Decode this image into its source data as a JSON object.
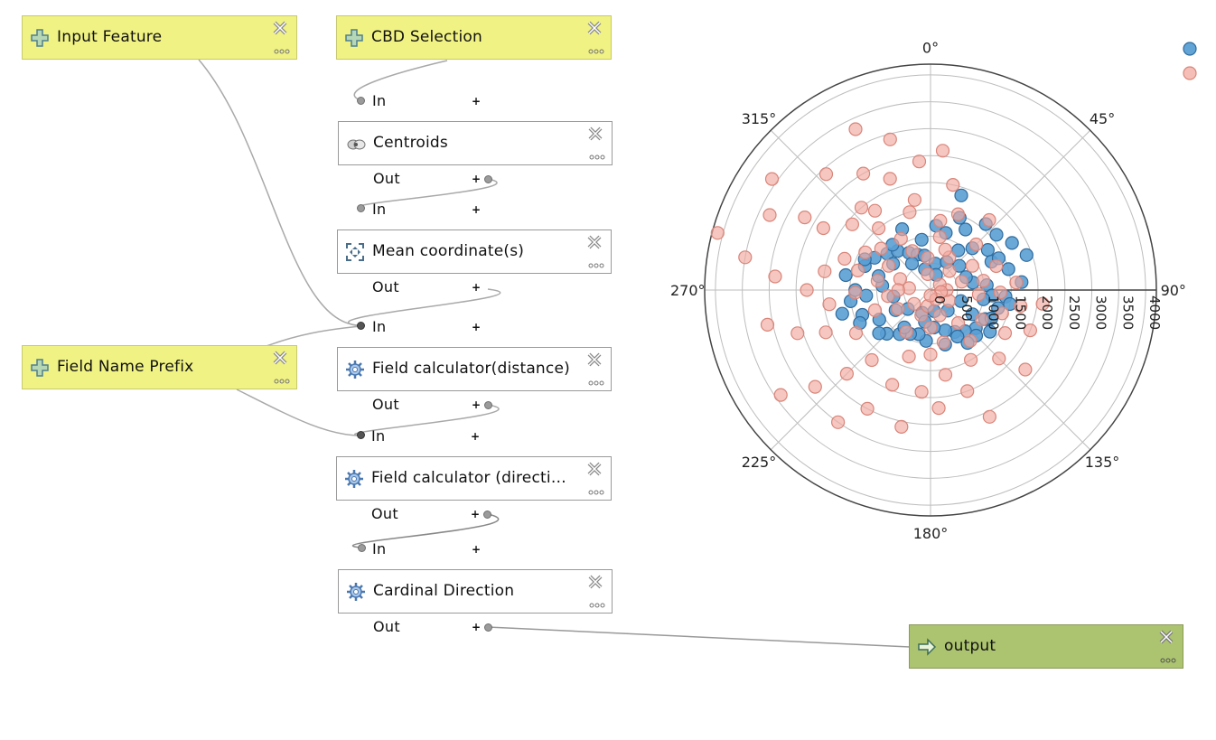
{
  "nodes": {
    "input_feature": {
      "label": "Input Feature"
    },
    "cbd_selection": {
      "label": "CBD Selection"
    },
    "field_name_prefix": {
      "label": "Field Name Prefix"
    },
    "centroids": {
      "label": "Centroids",
      "in": "In",
      "out": "Out"
    },
    "mean_coordinate": {
      "label": "Mean coordinate(s)",
      "in": "In",
      "out": "Out"
    },
    "field_calc_distance": {
      "label": "Field calculator(distance)",
      "in": "In",
      "out": "Out"
    },
    "field_calc_direction": {
      "label": "Field calculator (directi…",
      "in": "In",
      "out": "Out"
    },
    "cardinal_direction": {
      "label": "Cardinal Direction",
      "in": "In",
      "out": "Out"
    },
    "output": {
      "label": "output"
    }
  },
  "colors": {
    "input_node": "#f0f283",
    "output_node": "#acc46f",
    "series_blue": "#5a9fd4",
    "series_pink": "#f1a9a0"
  },
  "chart_data": {
    "type": "scatter",
    "subtype": "polar",
    "angular_ticks": [
      "0°",
      "45°",
      "90°",
      "135°",
      "180°",
      "225°",
      "270°",
      "315°"
    ],
    "radial_ticks": [
      "0",
      "500",
      "1000",
      "1500",
      "2000",
      "2500",
      "3000",
      "3500",
      "4000"
    ],
    "radial_range": [
      0,
      4200
    ],
    "angular_direction": "clockwise",
    "rotation_zero": "north",
    "grid": true,
    "legend": "top-right",
    "series": [
      {
        "color": "#5a9fd4",
        "points": [
          [
            1200,
            5
          ],
          [
            1850,
            18
          ],
          [
            1450,
            22
          ],
          [
            1600,
            40
          ],
          [
            1300,
            55
          ],
          [
            1750,
            60
          ],
          [
            1900,
            70
          ],
          [
            1500,
            75
          ],
          [
            1400,
            95
          ],
          [
            1300,
            105
          ],
          [
            1150,
            118
          ],
          [
            1100,
            130
          ],
          [
            1000,
            140
          ],
          [
            900,
            150
          ],
          [
            800,
            160
          ],
          [
            1050,
            165
          ],
          [
            700,
            175
          ],
          [
            950,
            185
          ],
          [
            850,
            195
          ],
          [
            900,
            205
          ],
          [
            1000,
            215
          ],
          [
            1150,
            225
          ],
          [
            1100,
            240
          ],
          [
            1350,
            250
          ],
          [
            1500,
            262
          ],
          [
            1400,
            270
          ],
          [
            1600,
            280
          ],
          [
            1300,
            290
          ],
          [
            1200,
            300
          ],
          [
            1050,
            310
          ],
          [
            950,
            320
          ],
          [
            800,
            330
          ],
          [
            700,
            340
          ],
          [
            650,
            350
          ],
          [
            500,
            10
          ],
          [
            600,
            30
          ],
          [
            700,
            50
          ],
          [
            800,
            80
          ],
          [
            600,
            110
          ],
          [
            500,
            140
          ],
          [
            400,
            170
          ],
          [
            450,
            200
          ],
          [
            550,
            230
          ],
          [
            700,
            260
          ],
          [
            900,
            275
          ],
          [
            1000,
            285
          ],
          [
            850,
            305
          ],
          [
            600,
            325
          ],
          [
            400,
            345
          ],
          [
            300,
            20
          ],
          [
            900,
            35
          ],
          [
            1100,
            45
          ],
          [
            1250,
            65
          ],
          [
            1050,
            85
          ],
          [
            1150,
            95
          ],
          [
            1250,
            115
          ],
          [
            1350,
            125
          ],
          [
            1000,
            150
          ],
          [
            1200,
            135
          ],
          [
            600,
            190
          ],
          [
            850,
            215
          ],
          [
            750,
            240
          ],
          [
            1250,
            230
          ],
          [
            1450,
            245
          ],
          [
            1700,
            255
          ],
          [
            1200,
            265
          ],
          [
            1350,
            295
          ],
          [
            1100,
            320
          ],
          [
            1250,
            335
          ],
          [
            950,
            350
          ],
          [
            1100,
            15
          ],
          [
            1300,
            30
          ],
          [
            1600,
            50
          ],
          [
            1400,
            65
          ],
          [
            1700,
            85
          ],
          [
            1500,
            100
          ],
          [
            1200,
            145
          ],
          [
            900,
            120
          ],
          [
            1000,
            100
          ],
          [
            700,
            70
          ]
        ]
      },
      {
        "color": "#f1a9a0",
        "points": [
          [
            2400,
            355
          ],
          [
            2900,
            345
          ],
          [
            3300,
            335
          ],
          [
            2500,
            330
          ],
          [
            2000,
            320
          ],
          [
            2900,
            318
          ],
          [
            3600,
            305
          ],
          [
            2700,
            300
          ],
          [
            3300,
            295
          ],
          [
            4100,
            285
          ],
          [
            2000,
            280
          ],
          [
            3500,
            280
          ],
          [
            2900,
            275
          ],
          [
            2300,
            270
          ],
          [
            1400,
            268
          ],
          [
            1900,
            262
          ],
          [
            3100,
            258
          ],
          [
            2600,
            252
          ],
          [
            2100,
            248
          ],
          [
            1600,
            240
          ],
          [
            3400,
            235
          ],
          [
            2800,
            230
          ],
          [
            2200,
            225
          ],
          [
            1700,
            220
          ],
          [
            3000,
            215
          ],
          [
            2500,
            208
          ],
          [
            1900,
            202
          ],
          [
            1300,
            198
          ],
          [
            2600,
            192
          ],
          [
            1900,
            185
          ],
          [
            1200,
            180
          ],
          [
            2200,
            176
          ],
          [
            1600,
            170
          ],
          [
            1000,
            166
          ],
          [
            2000,
            160
          ],
          [
            2600,
            155
          ],
          [
            1500,
            150
          ],
          [
            1200,
            142
          ],
          [
            1800,
            135
          ],
          [
            2300,
            130
          ],
          [
            1600,
            120
          ],
          [
            2000,
            112
          ],
          [
            1400,
            108
          ],
          [
            1700,
            100
          ],
          [
            2100,
            97
          ],
          [
            1300,
            92
          ],
          [
            1600,
            85
          ],
          [
            1000,
            80
          ],
          [
            1300,
            70
          ],
          [
            900,
            60
          ],
          [
            1200,
            45
          ],
          [
            1700,
            40
          ],
          [
            1500,
            20
          ],
          [
            2000,
            12
          ],
          [
            1300,
            8
          ],
          [
            600,
            355
          ],
          [
            800,
            335
          ],
          [
            1100,
            330
          ],
          [
            1500,
            320
          ],
          [
            1200,
            310
          ],
          [
            900,
            300
          ],
          [
            600,
            290
          ],
          [
            400,
            275
          ],
          [
            800,
            262
          ],
          [
            1100,
            250
          ],
          [
            700,
            240
          ],
          [
            400,
            230
          ],
          [
            900,
            210
          ],
          [
            500,
            200
          ],
          [
            300,
            190
          ],
          [
            700,
            180
          ],
          [
            200,
            150
          ],
          [
            400,
            120
          ],
          [
            300,
            90
          ],
          [
            200,
            60
          ],
          [
            500,
            45
          ],
          [
            700,
            30
          ],
          [
            300,
            350
          ],
          [
            1400,
            300
          ],
          [
            1700,
            290
          ],
          [
            1900,
            310
          ],
          [
            2200,
            340
          ],
          [
            2600,
            5
          ],
          [
            1500,
            345
          ],
          [
            1800,
            325
          ],
          [
            1000,
            280
          ],
          [
            1400,
            285
          ],
          [
            600,
            270
          ],
          [
            200,
            100
          ],
          [
            100,
            180
          ],
          [
            500,
            160
          ],
          [
            800,
            140
          ],
          [
            1100,
            120
          ],
          [
            900,
            95
          ],
          [
            600,
            75
          ],
          [
            800,
            20
          ],
          [
            1000,
            10
          ],
          [
            1700,
            350
          ],
          [
            2300,
            300
          ]
        ]
      }
    ]
  }
}
